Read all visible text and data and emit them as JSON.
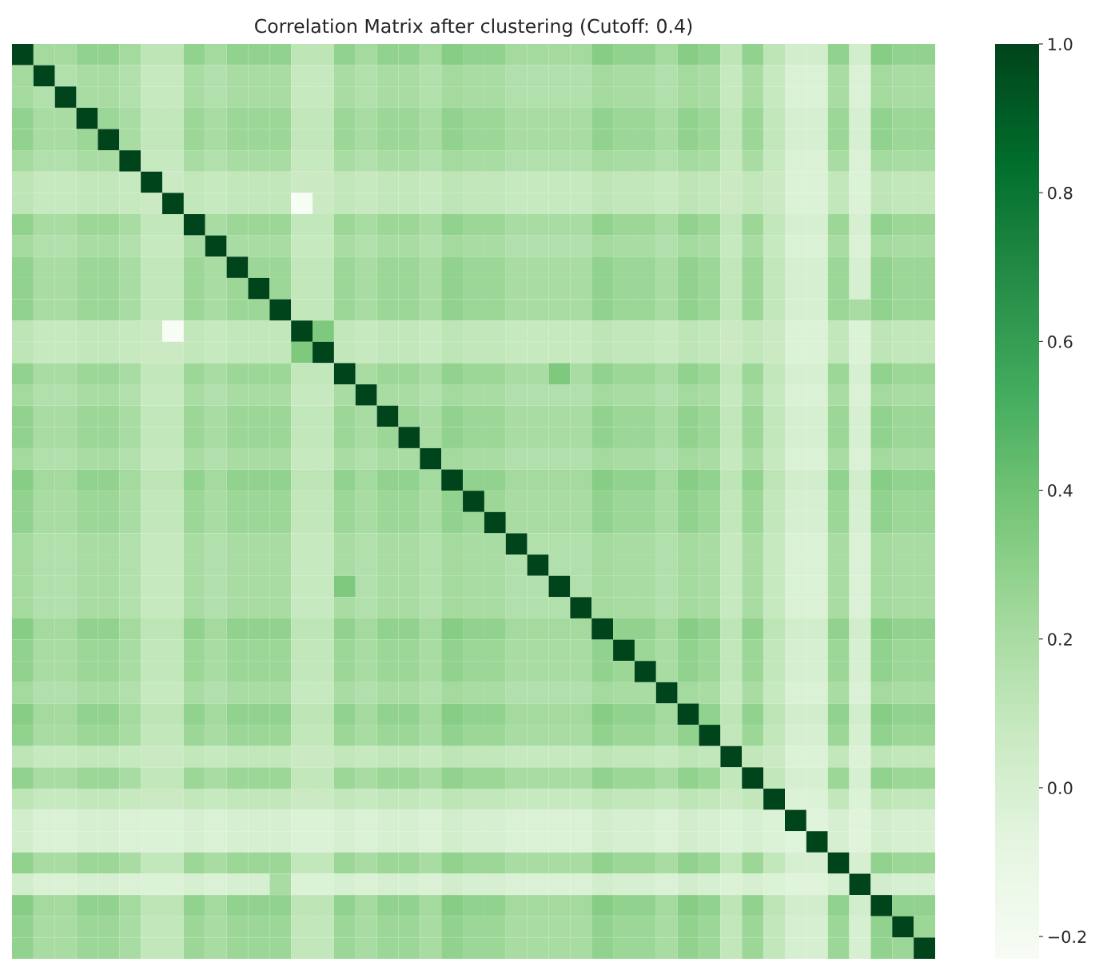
{
  "chart_data": {
    "type": "heatmap",
    "title": "Correlation Matrix after clustering (Cutoff: 0.4)",
    "categories": [
      null,
      null,
      null,
      null,
      null,
      null,
      null,
      null,
      null,
      null,
      null,
      null,
      null,
      null,
      null,
      null,
      null,
      null,
      null,
      null,
      null,
      null,
      null,
      null,
      null,
      null,
      null,
      null,
      null,
      null,
      null,
      null,
      null,
      null,
      null,
      null,
      null,
      null,
      null,
      null,
      null,
      null,
      null
    ],
    "y_categories": [
      null,
      null,
      null,
      null,
      null,
      null,
      null,
      null,
      null,
      null,
      null,
      null,
      null,
      null,
      null,
      null,
      null,
      null,
      null,
      null,
      null,
      null,
      null,
      null,
      null,
      null,
      null,
      null,
      null,
      null,
      null,
      null,
      null,
      null,
      null,
      null,
      null,
      null,
      null,
      null,
      null,
      null,
      null
    ],
    "clim": [
      -0.23,
      1.0
    ],
    "cticks": [
      {
        "value": -0.2,
        "label": "−0.2"
      },
      {
        "value": 0.0,
        "label": "0.0"
      },
      {
        "value": 0.2,
        "label": "0.2"
      },
      {
        "value": 0.4,
        "label": "0.4"
      },
      {
        "value": 0.6,
        "label": "0.6"
      },
      {
        "value": 0.8,
        "label": "0.8"
      },
      {
        "value": 1.0,
        "label": "1.0"
      }
    ],
    "cells": [
      [
        1,
        0.22,
        0.22,
        0.28,
        0.28,
        0.22,
        0.12,
        0.12,
        0.28,
        0.22,
        0.28,
        0.28,
        0.28,
        0.12,
        0.12,
        0.28,
        0.22,
        0.28,
        0.28,
        0.22,
        0.32,
        0.28,
        0.28,
        0.22,
        0.22,
        0.22,
        0.22,
        0.32,
        0.28,
        0.28,
        0.22,
        0.32,
        0.28,
        0.12,
        0.28,
        0.12,
        0.02,
        0.02,
        0.28,
        0.02,
        0.32,
        0.28,
        0.28
      ],
      [
        0.22,
        1,
        0.16,
        0.2,
        0.2,
        0.16,
        0.08,
        0.08,
        0.2,
        0.16,
        0.2,
        0.2,
        0.2,
        0.08,
        0.08,
        0.2,
        0.16,
        0.2,
        0.2,
        0.16,
        0.22,
        0.2,
        0.2,
        0.16,
        0.16,
        0.16,
        0.16,
        0.22,
        0.2,
        0.2,
        0.16,
        0.22,
        0.2,
        0.08,
        0.2,
        0.08,
        -0.02,
        -0.02,
        0.2,
        -0.02,
        0.22,
        0.2,
        0.2
      ],
      [
        0.22,
        0.16,
        1,
        0.2,
        0.2,
        0.16,
        0.08,
        0.08,
        0.2,
        0.16,
        0.2,
        0.2,
        0.2,
        0.08,
        0.08,
        0.2,
        0.16,
        0.2,
        0.2,
        0.16,
        0.22,
        0.2,
        0.2,
        0.16,
        0.16,
        0.16,
        0.16,
        0.22,
        0.2,
        0.2,
        0.16,
        0.22,
        0.2,
        0.08,
        0.2,
        0.08,
        -0.02,
        -0.02,
        0.2,
        -0.02,
        0.22,
        0.2,
        0.2
      ],
      [
        0.28,
        0.2,
        0.2,
        1,
        0.25,
        0.2,
        0.1,
        0.1,
        0.25,
        0.2,
        0.25,
        0.25,
        0.25,
        0.1,
        0.1,
        0.25,
        0.2,
        0.25,
        0.25,
        0.2,
        0.28,
        0.25,
        0.25,
        0.2,
        0.2,
        0.2,
        0.2,
        0.28,
        0.25,
        0.25,
        0.2,
        0.28,
        0.25,
        0.1,
        0.25,
        0.1,
        0,
        0,
        0.25,
        0,
        0.28,
        0.25,
        0.25
      ],
      [
        0.28,
        0.2,
        0.2,
        0.25,
        1,
        0.2,
        0.1,
        0.1,
        0.25,
        0.2,
        0.25,
        0.25,
        0.25,
        0.1,
        0.1,
        0.25,
        0.2,
        0.25,
        0.25,
        0.2,
        0.28,
        0.25,
        0.25,
        0.2,
        0.2,
        0.2,
        0.2,
        0.28,
        0.25,
        0.25,
        0.2,
        0.28,
        0.25,
        0.1,
        0.25,
        0.1,
        0,
        0,
        0.25,
        0,
        0.28,
        0.25,
        0.25
      ],
      [
        0.22,
        0.16,
        0.16,
        0.2,
        0.2,
        1,
        0.08,
        0.08,
        0.2,
        0.16,
        0.2,
        0.2,
        0.2,
        0.08,
        0.08,
        0.2,
        0.16,
        0.2,
        0.2,
        0.16,
        0.22,
        0.2,
        0.2,
        0.16,
        0.16,
        0.16,
        0.16,
        0.22,
        0.2,
        0.2,
        0.16,
        0.22,
        0.2,
        0.08,
        0.2,
        0.08,
        -0.02,
        -0.02,
        0.2,
        -0.02,
        0.22,
        0.2,
        0.2
      ],
      [
        0.12,
        0.08,
        0.08,
        0.1,
        0.1,
        0.08,
        1,
        0.06,
        0.1,
        0.08,
        0.1,
        0.1,
        0.1,
        0.06,
        0.06,
        0.1,
        0.08,
        0.1,
        0.1,
        0.08,
        0.12,
        0.1,
        0.1,
        0.08,
        0.08,
        0.08,
        0.08,
        0.12,
        0.1,
        0.1,
        0.08,
        0.12,
        0.1,
        0.06,
        0.1,
        0.06,
        -0.03,
        -0.03,
        0.1,
        -0.03,
        0.12,
        0.1,
        0.1
      ],
      [
        0.12,
        0.08,
        0.08,
        0.1,
        0.1,
        0.08,
        0.06,
        1,
        0.1,
        0.08,
        0.1,
        0.1,
        0.1,
        -0.23,
        0.06,
        0.1,
        0.08,
        0.1,
        0.1,
        0.08,
        0.12,
        0.1,
        0.1,
        0.08,
        0.08,
        0.08,
        0.08,
        0.12,
        0.1,
        0.1,
        0.08,
        0.12,
        0.1,
        0.06,
        0.1,
        0.06,
        -0.03,
        -0.03,
        0.1,
        -0.03,
        0.12,
        0.1,
        0.1
      ],
      [
        0.28,
        0.2,
        0.2,
        0.25,
        0.25,
        0.2,
        0.1,
        0.1,
        1,
        0.2,
        0.25,
        0.25,
        0.25,
        0.1,
        0.1,
        0.25,
        0.2,
        0.25,
        0.25,
        0.2,
        0.28,
        0.25,
        0.25,
        0.2,
        0.2,
        0.2,
        0.2,
        0.28,
        0.25,
        0.25,
        0.2,
        0.28,
        0.25,
        0.1,
        0.25,
        0.1,
        0,
        0,
        0.25,
        0,
        0.28,
        0.25,
        0.25
      ],
      [
        0.22,
        0.16,
        0.16,
        0.2,
        0.2,
        0.16,
        0.08,
        0.08,
        0.2,
        1,
        0.2,
        0.2,
        0.2,
        0.08,
        0.08,
        0.2,
        0.16,
        0.2,
        0.2,
        0.16,
        0.22,
        0.2,
        0.2,
        0.16,
        0.16,
        0.16,
        0.16,
        0.22,
        0.2,
        0.2,
        0.16,
        0.22,
        0.2,
        0.08,
        0.2,
        0.08,
        -0.02,
        -0.02,
        0.2,
        -0.02,
        0.22,
        0.2,
        0.2
      ],
      [
        0.28,
        0.2,
        0.2,
        0.25,
        0.25,
        0.2,
        0.1,
        0.1,
        0.25,
        0.2,
        1,
        0.25,
        0.25,
        0.1,
        0.1,
        0.25,
        0.2,
        0.25,
        0.25,
        0.2,
        0.28,
        0.25,
        0.25,
        0.2,
        0.2,
        0.2,
        0.2,
        0.28,
        0.25,
        0.25,
        0.2,
        0.28,
        0.25,
        0.1,
        0.25,
        0.1,
        0,
        0,
        0.25,
        0,
        0.28,
        0.25,
        0.25
      ],
      [
        0.28,
        0.2,
        0.2,
        0.25,
        0.25,
        0.2,
        0.1,
        0.1,
        0.25,
        0.2,
        0.25,
        1,
        0.25,
        0.1,
        0.1,
        0.25,
        0.2,
        0.25,
        0.25,
        0.2,
        0.28,
        0.25,
        0.25,
        0.2,
        0.2,
        0.2,
        0.2,
        0.28,
        0.25,
        0.25,
        0.2,
        0.28,
        0.25,
        0.1,
        0.25,
        0.1,
        0,
        0,
        0.25,
        0,
        0.28,
        0.25,
        0.25
      ],
      [
        0.28,
        0.2,
        0.2,
        0.25,
        0.25,
        0.2,
        0.1,
        0.1,
        0.25,
        0.2,
        0.25,
        0.25,
        1,
        0.1,
        0.1,
        0.25,
        0.2,
        0.25,
        0.25,
        0.2,
        0.28,
        0.25,
        0.25,
        0.2,
        0.2,
        0.2,
        0.2,
        0.28,
        0.25,
        0.25,
        0.2,
        0.28,
        0.25,
        0.1,
        0.25,
        0.1,
        0,
        0,
        0.25,
        0.2,
        0.28,
        0.25,
        0.25
      ],
      [
        0.12,
        0.08,
        0.08,
        0.1,
        0.1,
        0.08,
        0.06,
        -0.23,
        0.1,
        0.08,
        0.1,
        0.1,
        0.1,
        1,
        0.35,
        0.1,
        0.08,
        0.1,
        0.1,
        0.08,
        0.12,
        0.1,
        0.1,
        0.08,
        0.08,
        0.08,
        0.08,
        0.12,
        0.1,
        0.1,
        0.08,
        0.12,
        0.1,
        0.06,
        0.1,
        0.06,
        -0.03,
        -0.03,
        0.1,
        -0.03,
        0.12,
        0.1,
        0.1
      ],
      [
        0.12,
        0.08,
        0.08,
        0.1,
        0.1,
        0.08,
        0.06,
        0.06,
        0.1,
        0.08,
        0.1,
        0.1,
        0.1,
        0.35,
        1,
        0.1,
        0.08,
        0.1,
        0.1,
        0.08,
        0.12,
        0.1,
        0.1,
        0.08,
        0.08,
        0.08,
        0.08,
        0.12,
        0.1,
        0.1,
        0.08,
        0.12,
        0.1,
        0.06,
        0.1,
        0.06,
        -0.03,
        -0.03,
        0.1,
        -0.03,
        0.12,
        0.1,
        0.1
      ],
      [
        0.28,
        0.2,
        0.2,
        0.25,
        0.25,
        0.2,
        0.1,
        0.1,
        0.25,
        0.2,
        0.25,
        0.25,
        0.25,
        0.1,
        0.1,
        1,
        0.2,
        0.25,
        0.25,
        0.2,
        0.28,
        0.25,
        0.25,
        0.2,
        0.2,
        0.35,
        0.2,
        0.28,
        0.25,
        0.25,
        0.2,
        0.28,
        0.25,
        0.1,
        0.25,
        0.1,
        0,
        0,
        0.25,
        0,
        0.28,
        0.25,
        0.25
      ],
      [
        0.22,
        0.16,
        0.16,
        0.2,
        0.2,
        0.16,
        0.08,
        0.08,
        0.2,
        0.16,
        0.2,
        0.2,
        0.2,
        0.08,
        0.08,
        0.2,
        1,
        0.2,
        0.2,
        0.16,
        0.22,
        0.2,
        0.2,
        0.16,
        0.16,
        0.16,
        0.16,
        0.22,
        0.2,
        0.2,
        0.16,
        0.22,
        0.2,
        0.08,
        0.2,
        0.08,
        -0.02,
        -0.02,
        0.2,
        -0.02,
        0.22,
        0.2,
        0.2
      ],
      [
        0.28,
        0.2,
        0.2,
        0.25,
        0.25,
        0.2,
        0.1,
        0.1,
        0.25,
        0.2,
        0.25,
        0.25,
        0.25,
        0.1,
        0.1,
        0.25,
        0.2,
        1,
        0.25,
        0.2,
        0.28,
        0.25,
        0.25,
        0.2,
        0.2,
        0.2,
        0.2,
        0.28,
        0.25,
        0.25,
        0.2,
        0.28,
        0.25,
        0.1,
        0.25,
        0.1,
        0,
        0,
        0.25,
        0,
        0.28,
        0.25,
        0.25
      ],
      [
        0.28,
        0.2,
        0.2,
        0.25,
        0.25,
        0.2,
        0.1,
        0.1,
        0.25,
        0.2,
        0.25,
        0.25,
        0.25,
        0.1,
        0.1,
        0.25,
        0.2,
        0.25,
        1,
        0.2,
        0.28,
        0.25,
        0.25,
        0.2,
        0.2,
        0.2,
        0.2,
        0.28,
        0.25,
        0.25,
        0.2,
        0.28,
        0.25,
        0.1,
        0.25,
        0.1,
        0,
        0,
        0.25,
        0,
        0.28,
        0.25,
        0.25
      ],
      [
        0.22,
        0.16,
        0.16,
        0.2,
        0.2,
        0.16,
        0.08,
        0.08,
        0.2,
        0.16,
        0.2,
        0.2,
        0.2,
        0.08,
        0.08,
        0.2,
        0.16,
        0.2,
        0.2,
        1,
        0.22,
        0.2,
        0.2,
        0.16,
        0.16,
        0.16,
        0.16,
        0.22,
        0.2,
        0.2,
        0.16,
        0.22,
        0.2,
        0.08,
        0.2,
        0.08,
        -0.02,
        -0.02,
        0.2,
        -0.02,
        0.22,
        0.2,
        0.2
      ],
      [
        0.32,
        0.22,
        0.22,
        0.28,
        0.28,
        0.22,
        0.12,
        0.12,
        0.28,
        0.22,
        0.28,
        0.28,
        0.28,
        0.12,
        0.12,
        0.28,
        0.22,
        0.28,
        0.28,
        0.22,
        1,
        0.28,
        0.28,
        0.22,
        0.22,
        0.22,
        0.22,
        0.32,
        0.28,
        0.28,
        0.22,
        0.32,
        0.28,
        0.12,
        0.28,
        0.12,
        0.02,
        0.02,
        0.28,
        0.02,
        0.32,
        0.28,
        0.28
      ],
      [
        0.28,
        0.2,
        0.2,
        0.25,
        0.25,
        0.2,
        0.1,
        0.1,
        0.25,
        0.2,
        0.25,
        0.25,
        0.25,
        0.1,
        0.1,
        0.25,
        0.2,
        0.25,
        0.25,
        0.2,
        0.28,
        1,
        0.25,
        0.2,
        0.2,
        0.2,
        0.2,
        0.28,
        0.25,
        0.25,
        0.2,
        0.28,
        0.25,
        0.1,
        0.25,
        0.1,
        0,
        0,
        0.25,
        0,
        0.28,
        0.25,
        0.25
      ],
      [
        0.28,
        0.2,
        0.2,
        0.25,
        0.25,
        0.2,
        0.1,
        0.1,
        0.25,
        0.2,
        0.25,
        0.25,
        0.25,
        0.1,
        0.1,
        0.25,
        0.2,
        0.25,
        0.25,
        0.2,
        0.28,
        0.25,
        1,
        0.2,
        0.2,
        0.2,
        0.2,
        0.28,
        0.25,
        0.25,
        0.2,
        0.28,
        0.25,
        0.1,
        0.25,
        0.1,
        0,
        0,
        0.25,
        0,
        0.28,
        0.25,
        0.25
      ],
      [
        0.22,
        0.16,
        0.16,
        0.2,
        0.2,
        0.16,
        0.08,
        0.08,
        0.2,
        0.16,
        0.2,
        0.2,
        0.2,
        0.08,
        0.08,
        0.2,
        0.16,
        0.2,
        0.2,
        0.16,
        0.22,
        0.2,
        0.2,
        1,
        0.16,
        0.16,
        0.16,
        0.22,
        0.2,
        0.2,
        0.16,
        0.22,
        0.2,
        0.08,
        0.2,
        0.08,
        -0.02,
        -0.02,
        0.2,
        -0.02,
        0.22,
        0.2,
        0.2
      ],
      [
        0.22,
        0.16,
        0.16,
        0.2,
        0.2,
        0.16,
        0.08,
        0.08,
        0.2,
        0.16,
        0.2,
        0.2,
        0.2,
        0.08,
        0.08,
        0.2,
        0.16,
        0.2,
        0.2,
        0.16,
        0.22,
        0.2,
        0.2,
        0.16,
        1,
        0.16,
        0.16,
        0.22,
        0.2,
        0.2,
        0.16,
        0.22,
        0.2,
        0.08,
        0.2,
        0.08,
        -0.02,
        -0.02,
        0.2,
        -0.02,
        0.22,
        0.2,
        0.2
      ],
      [
        0.22,
        0.16,
        0.16,
        0.2,
        0.2,
        0.16,
        0.08,
        0.08,
        0.2,
        0.16,
        0.2,
        0.2,
        0.2,
        0.08,
        0.08,
        0.35,
        0.16,
        0.2,
        0.2,
        0.16,
        0.22,
        0.2,
        0.2,
        0.16,
        0.16,
        1,
        0.16,
        0.22,
        0.2,
        0.2,
        0.16,
        0.22,
        0.2,
        0.08,
        0.2,
        0.08,
        -0.02,
        -0.02,
        0.2,
        -0.02,
        0.22,
        0.2,
        0.2
      ],
      [
        0.22,
        0.16,
        0.16,
        0.2,
        0.2,
        0.16,
        0.08,
        0.08,
        0.2,
        0.16,
        0.2,
        0.2,
        0.2,
        0.08,
        0.08,
        0.2,
        0.16,
        0.2,
        0.2,
        0.16,
        0.22,
        0.2,
        0.2,
        0.16,
        0.16,
        0.16,
        1,
        0.22,
        0.2,
        0.2,
        0.16,
        0.22,
        0.2,
        0.08,
        0.2,
        0.08,
        -0.02,
        -0.02,
        0.2,
        -0.02,
        0.22,
        0.2,
        0.2
      ],
      [
        0.32,
        0.22,
        0.22,
        0.28,
        0.28,
        0.22,
        0.12,
        0.12,
        0.28,
        0.22,
        0.28,
        0.28,
        0.28,
        0.12,
        0.12,
        0.28,
        0.22,
        0.28,
        0.28,
        0.22,
        0.32,
        0.28,
        0.28,
        0.22,
        0.22,
        0.22,
        0.22,
        1,
        0.28,
        0.28,
        0.22,
        0.32,
        0.28,
        0.12,
        0.28,
        0.12,
        0.02,
        0.02,
        0.28,
        0.02,
        0.32,
        0.28,
        0.28
      ],
      [
        0.28,
        0.2,
        0.2,
        0.25,
        0.25,
        0.2,
        0.1,
        0.1,
        0.25,
        0.2,
        0.25,
        0.25,
        0.25,
        0.1,
        0.1,
        0.25,
        0.2,
        0.25,
        0.25,
        0.2,
        0.28,
        0.25,
        0.25,
        0.2,
        0.2,
        0.2,
        0.2,
        0.28,
        1,
        0.25,
        0.2,
        0.28,
        0.25,
        0.1,
        0.25,
        0.1,
        0,
        0,
        0.25,
        0,
        0.28,
        0.25,
        0.25
      ],
      [
        0.28,
        0.2,
        0.2,
        0.25,
        0.25,
        0.2,
        0.1,
        0.1,
        0.25,
        0.2,
        0.25,
        0.25,
        0.25,
        0.1,
        0.1,
        0.25,
        0.2,
        0.25,
        0.25,
        0.2,
        0.28,
        0.25,
        0.25,
        0.2,
        0.2,
        0.2,
        0.2,
        0.28,
        0.25,
        1,
        0.2,
        0.28,
        0.25,
        0.1,
        0.25,
        0.1,
        0,
        0,
        0.25,
        0,
        0.28,
        0.25,
        0.25
      ],
      [
        0.22,
        0.16,
        0.16,
        0.2,
        0.2,
        0.16,
        0.08,
        0.08,
        0.2,
        0.16,
        0.2,
        0.2,
        0.2,
        0.08,
        0.08,
        0.2,
        0.16,
        0.2,
        0.2,
        0.16,
        0.22,
        0.2,
        0.2,
        0.16,
        0.16,
        0.16,
        0.16,
        0.22,
        0.2,
        0.2,
        1,
        0.22,
        0.2,
        0.08,
        0.2,
        0.08,
        -0.02,
        -0.02,
        0.2,
        -0.02,
        0.22,
        0.2,
        0.2
      ],
      [
        0.32,
        0.22,
        0.22,
        0.28,
        0.28,
        0.22,
        0.12,
        0.12,
        0.28,
        0.22,
        0.28,
        0.28,
        0.28,
        0.12,
        0.12,
        0.28,
        0.22,
        0.28,
        0.28,
        0.22,
        0.32,
        0.28,
        0.28,
        0.22,
        0.22,
        0.22,
        0.22,
        0.32,
        0.28,
        0.28,
        0.22,
        1,
        0.28,
        0.12,
        0.28,
        0.12,
        0.02,
        0.02,
        0.28,
        0.02,
        0.32,
        0.28,
        0.28
      ],
      [
        0.28,
        0.2,
        0.2,
        0.25,
        0.25,
        0.2,
        0.1,
        0.1,
        0.25,
        0.2,
        0.25,
        0.25,
        0.25,
        0.1,
        0.1,
        0.25,
        0.2,
        0.25,
        0.25,
        0.2,
        0.28,
        0.25,
        0.25,
        0.2,
        0.2,
        0.2,
        0.2,
        0.28,
        0.25,
        0.25,
        0.2,
        0.28,
        1,
        0.1,
        0.25,
        0.1,
        0,
        0,
        0.25,
        0,
        0.28,
        0.25,
        0.25
      ],
      [
        0.12,
        0.08,
        0.08,
        0.1,
        0.1,
        0.08,
        0.06,
        0.06,
        0.1,
        0.08,
        0.1,
        0.1,
        0.1,
        0.06,
        0.06,
        0.1,
        0.08,
        0.1,
        0.1,
        0.08,
        0.12,
        0.1,
        0.1,
        0.08,
        0.08,
        0.08,
        0.08,
        0.12,
        0.1,
        0.1,
        0.08,
        0.12,
        0.1,
        1,
        0.1,
        0.06,
        -0.03,
        -0.03,
        0.1,
        -0.03,
        0.12,
        0.1,
        0.1
      ],
      [
        0.28,
        0.2,
        0.2,
        0.25,
        0.25,
        0.2,
        0.1,
        0.1,
        0.25,
        0.2,
        0.25,
        0.25,
        0.25,
        0.1,
        0.1,
        0.25,
        0.2,
        0.25,
        0.25,
        0.2,
        0.28,
        0.25,
        0.25,
        0.2,
        0.2,
        0.2,
        0.2,
        0.28,
        0.25,
        0.25,
        0.2,
        0.28,
        0.25,
        0.1,
        1,
        0.1,
        0,
        0,
        0.25,
        0,
        0.28,
        0.25,
        0.25
      ],
      [
        0.12,
        0.08,
        0.08,
        0.1,
        0.1,
        0.08,
        0.06,
        0.06,
        0.1,
        0.08,
        0.1,
        0.1,
        0.1,
        0.06,
        0.06,
        0.1,
        0.08,
        0.1,
        0.1,
        0.08,
        0.12,
        0.1,
        0.1,
        0.08,
        0.08,
        0.08,
        0.08,
        0.12,
        0.1,
        0.1,
        0.08,
        0.12,
        0.1,
        0.06,
        0.1,
        1,
        -0.03,
        -0.03,
        0.1,
        -0.03,
        0.12,
        0.1,
        0.1
      ],
      [
        0.02,
        -0.02,
        -0.02,
        0,
        0,
        -0.02,
        -0.03,
        -0.03,
        0,
        -0.02,
        0,
        0,
        0,
        -0.03,
        -0.03,
        0,
        -0.02,
        0,
        0,
        -0.02,
        0.02,
        0,
        0,
        -0.02,
        -0.02,
        -0.02,
        -0.02,
        0.02,
        0,
        0,
        -0.02,
        0.02,
        0,
        -0.03,
        0,
        -0.03,
        1,
        -0.05,
        0,
        -0.05,
        0.02,
        0,
        0
      ],
      [
        0.02,
        -0.02,
        -0.02,
        0,
        0,
        -0.02,
        -0.03,
        -0.03,
        0,
        -0.02,
        0,
        0,
        0,
        -0.03,
        -0.03,
        0,
        -0.02,
        0,
        0,
        -0.02,
        0.02,
        0,
        0,
        -0.02,
        -0.02,
        -0.02,
        -0.02,
        0.02,
        0,
        0,
        -0.02,
        0.02,
        0,
        -0.03,
        0,
        -0.03,
        -0.05,
        1,
        0,
        -0.05,
        0.02,
        0,
        0
      ],
      [
        0.28,
        0.2,
        0.2,
        0.25,
        0.25,
        0.2,
        0.1,
        0.1,
        0.25,
        0.2,
        0.25,
        0.25,
        0.25,
        0.1,
        0.1,
        0.25,
        0.2,
        0.25,
        0.25,
        0.2,
        0.28,
        0.25,
        0.25,
        0.2,
        0.2,
        0.2,
        0.2,
        0.28,
        0.25,
        0.25,
        0.2,
        0.28,
        0.25,
        0.1,
        0.25,
        0.1,
        0,
        0,
        1,
        0,
        0.28,
        0.25,
        0.25
      ],
      [
        0.02,
        -0.02,
        -0.02,
        0,
        0,
        -0.02,
        -0.03,
        -0.03,
        0,
        -0.02,
        0,
        0,
        0.2,
        -0.03,
        -0.03,
        0,
        -0.02,
        0,
        0,
        -0.02,
        0.02,
        0,
        0,
        -0.02,
        -0.02,
        -0.02,
        -0.02,
        0.02,
        0,
        0,
        -0.02,
        0.02,
        0,
        -0.03,
        0,
        -0.03,
        -0.05,
        -0.05,
        0,
        1,
        0.02,
        0,
        0
      ],
      [
        0.32,
        0.22,
        0.22,
        0.28,
        0.28,
        0.22,
        0.12,
        0.12,
        0.28,
        0.22,
        0.28,
        0.28,
        0.28,
        0.12,
        0.12,
        0.28,
        0.22,
        0.28,
        0.28,
        0.22,
        0.32,
        0.28,
        0.28,
        0.22,
        0.22,
        0.22,
        0.22,
        0.32,
        0.28,
        0.28,
        0.22,
        0.32,
        0.28,
        0.12,
        0.28,
        0.12,
        0.02,
        0.02,
        0.28,
        0.02,
        1,
        0.28,
        0.28
      ],
      [
        0.28,
        0.2,
        0.2,
        0.25,
        0.25,
        0.2,
        0.1,
        0.1,
        0.25,
        0.2,
        0.25,
        0.25,
        0.25,
        0.1,
        0.1,
        0.25,
        0.2,
        0.25,
        0.25,
        0.2,
        0.28,
        0.25,
        0.25,
        0.2,
        0.2,
        0.2,
        0.2,
        0.28,
        0.25,
        0.25,
        0.2,
        0.28,
        0.25,
        0.1,
        0.25,
        0.1,
        0,
        0,
        0.25,
        0,
        0.28,
        1,
        0.25
      ],
      [
        0.28,
        0.2,
        0.2,
        0.25,
        0.25,
        0.2,
        0.1,
        0.1,
        0.25,
        0.2,
        0.25,
        0.25,
        0.25,
        0.1,
        0.1,
        0.25,
        0.2,
        0.25,
        0.25,
        0.2,
        0.28,
        0.25,
        0.25,
        0.2,
        0.2,
        0.2,
        0.2,
        0.28,
        0.25,
        0.25,
        0.2,
        0.28,
        0.25,
        0.1,
        0.25,
        0.1,
        0,
        0,
        0.25,
        0,
        0.28,
        0.25,
        1
      ]
    ]
  }
}
